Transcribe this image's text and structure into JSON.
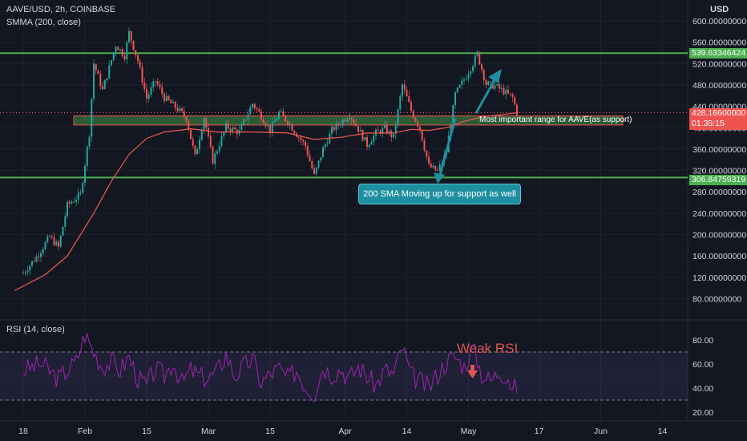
{
  "header": {
    "symbol_line": "AAVE/USD, 2h, COINBASE",
    "indicator_line": "SMMA (200, close)",
    "rsi_label": "RSI (14, close)",
    "currency": "USD"
  },
  "colors": {
    "background": "#131722",
    "up": "#26a69a",
    "down": "#ef5350",
    "smma": "#f05a50",
    "hline": "#4caf50",
    "rsi": "#9c27b0",
    "annotation": "#1e8fa0"
  },
  "annotations": {
    "zone_label": "Most important range for AAVE(as support)",
    "callout": "200 SMA Moving up for support as well",
    "weak_rsi": "Weak RSI"
  },
  "price_tags": {
    "upper": "539.63346424",
    "current_price": "428.16600000",
    "current_timer": "01:35:15",
    "lower": "306.84759319"
  },
  "chart_data": [
    {
      "type": "line",
      "title": "AAVE/USD, 2h, COINBASE",
      "ylabel": "USD",
      "ylim": [
        60,
        620
      ],
      "y_ticks": [
        "600.00000000",
        "560.00000000",
        "520.00000000",
        "480.00000000",
        "440.00000000",
        "400.00000000",
        "360.00000000",
        "320.00000000",
        "280.00000000",
        "240.00000000",
        "200.00000000",
        "160.00000000",
        "120.00000000",
        "80.00000000"
      ],
      "y_tick_values": [
        600,
        560,
        520,
        480,
        440,
        400,
        360,
        320,
        280,
        240,
        200,
        160,
        120,
        80
      ],
      "x_ticks": [
        "18",
        "Feb",
        "15",
        "Mar",
        "15",
        "Apr",
        "14",
        "May",
        "17",
        "Jun",
        "14"
      ],
      "x_tick_days": [
        0,
        14,
        28,
        42,
        56,
        73,
        87,
        101,
        117,
        131,
        145
      ],
      "horizontal_levels": [
        539.63346424,
        306.84759319
      ],
      "support_zone": [
        405,
        422
      ],
      "current_price": 428.166,
      "series": [
        {
          "name": "Price",
          "points": [
            [
              0,
              128
            ],
            [
              3,
              158
            ],
            [
              6,
              196
            ],
            [
              8,
              176
            ],
            [
              10,
              255
            ],
            [
              13,
              275
            ],
            [
              15,
              390
            ],
            [
              16,
              520
            ],
            [
              18,
              470
            ],
            [
              21,
              555
            ],
            [
              23,
              535
            ],
            [
              24,
              578
            ],
            [
              26,
              525
            ],
            [
              28,
              455
            ],
            [
              30,
              488
            ],
            [
              32,
              456
            ],
            [
              35,
              435
            ],
            [
              37,
              418
            ],
            [
              39,
              345
            ],
            [
              41,
              420
            ],
            [
              43,
              338
            ],
            [
              46,
              402
            ],
            [
              49,
              392
            ],
            [
              52,
              445
            ],
            [
              54,
              422
            ],
            [
              56,
              395
            ],
            [
              58,
              428
            ],
            [
              60,
              412
            ],
            [
              62,
              388
            ],
            [
              64,
              366
            ],
            [
              66,
              310
            ],
            [
              68,
              360
            ],
            [
              70,
              395
            ],
            [
              72,
              410
            ],
            [
              74,
              425
            ],
            [
              76,
              398
            ],
            [
              78,
              368
            ],
            [
              80,
              390
            ],
            [
              82,
              398
            ],
            [
              84,
              382
            ],
            [
              86,
              480
            ],
            [
              88,
              432
            ],
            [
              90,
              398
            ],
            [
              92,
              328
            ],
            [
              94,
              318
            ],
            [
              96,
              355
            ],
            [
              98,
              462
            ],
            [
              100,
              490
            ],
            [
              102,
              520
            ],
            [
              103,
              538
            ],
            [
              105,
              482
            ],
            [
              107,
              478
            ],
            [
              109,
              468
            ],
            [
              111,
              456
            ],
            [
              112,
              428
            ]
          ]
        },
        {
          "name": "SMMA (200, close)",
          "points": [
            [
              -2,
              95
            ],
            [
              5,
              125
            ],
            [
              10,
              160
            ],
            [
              16,
              240
            ],
            [
              20,
              300
            ],
            [
              24,
              350
            ],
            [
              28,
              380
            ],
            [
              32,
              392
            ],
            [
              38,
              398
            ],
            [
              44,
              392
            ],
            [
              52,
              392
            ],
            [
              60,
              390
            ],
            [
              66,
              378
            ],
            [
              72,
              382
            ],
            [
              78,
              390
            ],
            [
              84,
              390
            ],
            [
              88,
              397
            ],
            [
              92,
              395
            ],
            [
              96,
              400
            ],
            [
              100,
              412
            ],
            [
              104,
              420
            ],
            [
              108,
              424
            ],
            [
              112,
              428
            ]
          ]
        }
      ]
    },
    {
      "type": "line",
      "title": "RSI (14, close)",
      "ylim": [
        12,
        95
      ],
      "y_ticks": [
        "80.00",
        "60.00",
        "40.00",
        "20.00"
      ],
      "y_tick_values": [
        80,
        60,
        40,
        20
      ],
      "levels": [
        70,
        30
      ],
      "series": [
        {
          "name": "RSI (14, close)",
          "points": [
            [
              0,
              55
            ],
            [
              4,
              60
            ],
            [
              8,
              48
            ],
            [
              12,
              62
            ],
            [
              14,
              85
            ],
            [
              16,
              70
            ],
            [
              18,
              58
            ],
            [
              20,
              62
            ],
            [
              22,
              55
            ],
            [
              24,
              66
            ],
            [
              26,
              48
            ],
            [
              28,
              42
            ],
            [
              30,
              56
            ],
            [
              32,
              50
            ],
            [
              34,
              62
            ],
            [
              36,
              44
            ],
            [
              38,
              55
            ],
            [
              40,
              50
            ],
            [
              42,
              48
            ],
            [
              44,
              54
            ],
            [
              46,
              68
            ],
            [
              48,
              50
            ],
            [
              50,
              58
            ],
            [
              52,
              64
            ],
            [
              54,
              44
            ],
            [
              56,
              52
            ],
            [
              58,
              56
            ],
            [
              60,
              48
            ],
            [
              62,
              55
            ],
            [
              64,
              42
            ],
            [
              66,
              36
            ],
            [
              68,
              58
            ],
            [
              70,
              52
            ],
            [
              72,
              56
            ],
            [
              74,
              48
            ],
            [
              76,
              58
            ],
            [
              78,
              50
            ],
            [
              80,
              42
            ],
            [
              82,
              55
            ],
            [
              84,
              52
            ],
            [
              86,
              74
            ],
            [
              88,
              50
            ],
            [
              90,
              46
            ],
            [
              92,
              40
            ],
            [
              94,
              52
            ],
            [
              96,
              62
            ],
            [
              98,
              66
            ],
            [
              100,
              58
            ],
            [
              102,
              74
            ],
            [
              104,
              52
            ],
            [
              106,
              46
            ],
            [
              108,
              54
            ],
            [
              110,
              50
            ],
            [
              111,
              38
            ],
            [
              112,
              42
            ]
          ]
        }
      ]
    }
  ]
}
